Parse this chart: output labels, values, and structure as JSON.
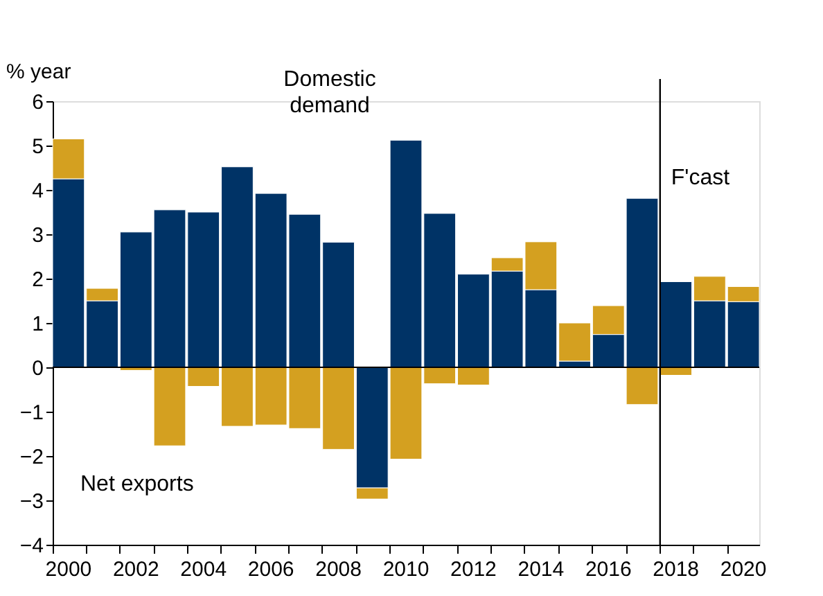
{
  "chart_data": {
    "type": "bar",
    "stacked": true,
    "ylabel": "% year",
    "categories": [
      "2000",
      null,
      "2002",
      null,
      "2004",
      null,
      "2006",
      null,
      "2008",
      null,
      "2010",
      null,
      "2012",
      null,
      "2014",
      null,
      "2016",
      null,
      "2018",
      null,
      "2020"
    ],
    "series": [
      {
        "name": "Domestic\ndemand",
        "color": "#003366",
        "values": [
          4.25,
          1.5,
          3.05,
          3.55,
          3.5,
          4.52,
          3.92,
          3.45,
          2.82,
          -2.72,
          5.12,
          3.47,
          2.1,
          2.17,
          1.75,
          0.14,
          0.74,
          3.81,
          1.93,
          1.5,
          1.48
        ]
      },
      {
        "name": "Net exports",
        "color": "#d4a020",
        "values": [
          0.9,
          0.28,
          -0.07,
          -1.77,
          -0.43,
          -1.33,
          -1.3,
          -1.38,
          -1.85,
          -0.25,
          -2.07,
          -0.37,
          -0.4,
          0.3,
          1.08,
          0.86,
          0.65,
          -0.84,
          -0.18,
          0.55,
          0.34
        ]
      }
    ],
    "ylim": [
      -4,
      6
    ],
    "yticks": [
      -4,
      -3,
      -2,
      -1,
      0,
      1,
      2,
      3,
      4,
      5,
      6
    ],
    "ref_lines": [
      {
        "axis": "x",
        "value": "2018",
        "label": "F'cast",
        "color": "#000000"
      },
      {
        "axis": "y",
        "value": 0,
        "color": "#000000"
      }
    ],
    "grid": false,
    "legend": false
  }
}
